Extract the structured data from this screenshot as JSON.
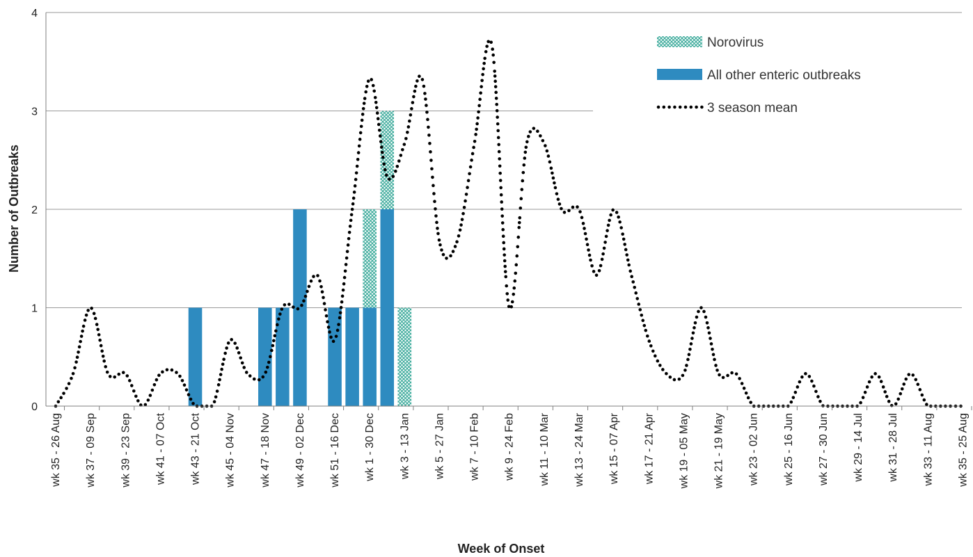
{
  "chart_data": {
    "type": "bar",
    "xlabel": "Week of Onset",
    "ylabel": "Number of Outbreaks",
    "ylim": [
      0,
      4
    ],
    "yticks": [
      "0",
      "1",
      "2",
      "3",
      "4"
    ],
    "grid": true,
    "legend_position": "top-right",
    "categories": [
      "wk 35",
      "wk 36",
      "wk 37",
      "wk 38",
      "wk 39",
      "wk 40",
      "wk 41",
      "wk 42",
      "wk 43",
      "wk 44",
      "wk 45",
      "wk 46",
      "wk 47",
      "wk 48",
      "wk 49",
      "wk 50",
      "wk 51",
      "wk 52",
      "wk 1",
      "wk 2",
      "wk 3",
      "wk 4",
      "wk 5",
      "wk 6",
      "wk 7",
      "wk 8",
      "wk 9",
      "wk 10",
      "wk 11",
      "wk 12",
      "wk 13",
      "wk 14",
      "wk 15",
      "wk 16",
      "wk 17",
      "wk 18",
      "wk 19",
      "wk 20",
      "wk 21",
      "wk 22",
      "wk 23",
      "wk 24",
      "wk 25",
      "wk 26",
      "wk 27",
      "wk 28",
      "wk 29",
      "wk 30",
      "wk 31",
      "wk 32",
      "wk 33",
      "wk 34",
      "wk 35"
    ],
    "tick_labels": [
      "wk 35 - 26 Aug",
      "wk 37 - 09 Sep",
      "wk 39 - 23 Sep",
      "wk 41 - 07 Oct",
      "wk 43 - 21 Oct",
      "wk 45 - 04 Nov",
      "wk 47 - 18 Nov",
      "wk 49 - 02 Dec",
      "wk 51 - 16 Dec",
      "wk 1 - 30 Dec",
      "wk 3 - 13 Jan",
      "wk 5 - 27 Jan",
      "wk 7 - 10 Feb",
      "wk 9 - 24 Feb",
      "wk 11 - 10 Mar",
      "wk 13 - 24 Mar",
      "wk 15 - 07 Apr",
      "wk 17 - 21 Apr",
      "wk 19 - 05 May",
      "wk 21 - 19 May",
      "wk 23 - 02 Jun",
      "wk 25 - 16 Jun",
      "wk 27 - 30 Jun",
      "wk 29 - 14 Jul",
      "wk 31 - 28 Jul",
      "wk 33 - 11 Aug",
      "wk 35 - 25 Aug"
    ],
    "series": [
      {
        "name": "All other enteric outbreaks",
        "kind": "stacked-bar",
        "color": "#2e8bc0",
        "values": [
          0,
          0,
          0,
          0,
          0,
          0,
          0,
          0,
          1,
          0,
          0,
          0,
          1,
          1,
          2,
          0,
          1,
          1,
          1,
          2,
          0,
          0,
          0,
          0,
          0,
          0,
          0,
          0,
          0,
          0,
          0,
          0,
          0,
          0,
          0,
          0,
          0,
          0,
          0,
          0,
          0,
          0,
          0,
          0,
          0,
          0,
          0,
          0,
          0,
          0,
          0,
          0,
          0
        ]
      },
      {
        "name": "Norovirus",
        "kind": "stacked-bar",
        "color": "#3aaa9a",
        "pattern": "crosshatch",
        "values": [
          0,
          0,
          0,
          0,
          0,
          0,
          0,
          0,
          0,
          0,
          0,
          0,
          0,
          0,
          0,
          0,
          0,
          0,
          1,
          1,
          1,
          0,
          0,
          0,
          0,
          0,
          0,
          0,
          0,
          0,
          0,
          0,
          0,
          0,
          0,
          0,
          0,
          0,
          0,
          0,
          0,
          0,
          0,
          0,
          0,
          0,
          0,
          0,
          0,
          0,
          0,
          0,
          0
        ]
      },
      {
        "name": "3 season mean",
        "kind": "dotted-line",
        "color": "#000000",
        "values": [
          0,
          0.33,
          1,
          0.33,
          0.33,
          0,
          0.33,
          0.33,
          0,
          0,
          0.67,
          0.33,
          0.33,
          1,
          1,
          1.33,
          0.67,
          2,
          3.33,
          2.33,
          2.67,
          3.33,
          1.67,
          1.67,
          2.67,
          3.67,
          1,
          2.67,
          2.67,
          2,
          2,
          1.33,
          2,
          1.33,
          0.67,
          0.33,
          0.33,
          1,
          0.33,
          0.33,
          0,
          0,
          0,
          0.33,
          0,
          0,
          0,
          0.33,
          0,
          0.33,
          0,
          0,
          0
        ]
      }
    ]
  }
}
